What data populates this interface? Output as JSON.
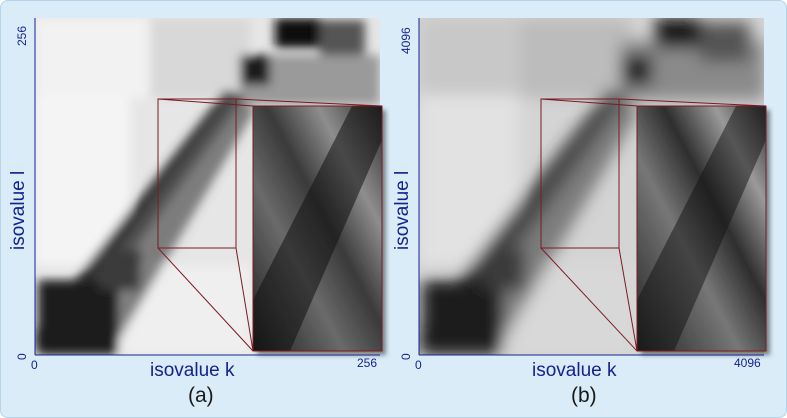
{
  "panels": [
    {
      "id": "a",
      "caption": "(a)",
      "x_axis": {
        "label": "isovalue k",
        "min_label": "0",
        "max_label": "256"
      },
      "y_axis": {
        "label": "isovalue l",
        "min_label": "0",
        "max_label": "256"
      }
    },
    {
      "id": "b",
      "caption": "(b)",
      "x_axis": {
        "label": "isovalue k",
        "min_label": "0",
        "max_label": "4096"
      },
      "y_axis": {
        "label": "isovalue l",
        "min_label": "0",
        "max_label": "4096"
      }
    }
  ],
  "colors": {
    "background": "#d9ecf7",
    "axis_text": "#16238e",
    "caption_text": "#1a1a1a",
    "zoom_outline": "#7b1a22"
  }
}
